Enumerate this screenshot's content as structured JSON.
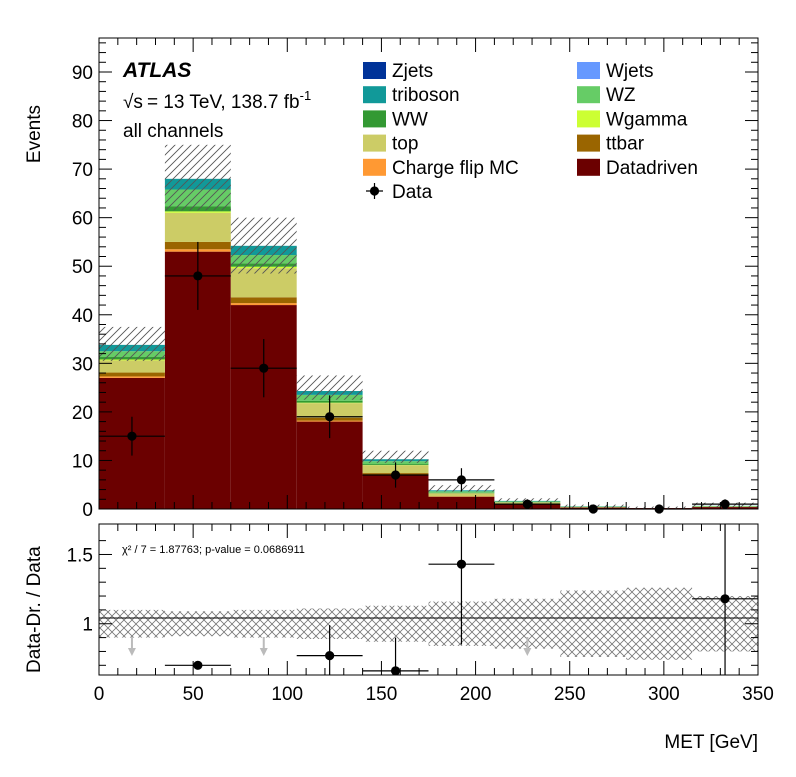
{
  "chart_data": [
    {
      "type": "stacked-bar",
      "ylabel": "Events",
      "ylim": [
        0,
        97
      ],
      "yticks": [
        0,
        10,
        20,
        30,
        40,
        50,
        60,
        70,
        80,
        90
      ],
      "xlim": [
        0,
        350
      ],
      "bin_edges": [
        0,
        35,
        70,
        105,
        140,
        175,
        210,
        245,
        280,
        315,
        350
      ],
      "atlas_label": "ATLAS",
      "energy_label": "= 13 TeV, 138.7 fb",
      "sqrt_symbol": "√s",
      "lumi_exponent": "-1",
      "channel_label": "all channels",
      "series": [
        {
          "name": "Datadriven",
          "color": "#6b0000",
          "values": [
            27,
            53,
            42,
            18,
            7,
            2.5,
            1,
            0.3,
            0.2,
            0.4
          ]
        },
        {
          "name": "Charge flip MC",
          "color": "#ff9933",
          "values": [
            0.3,
            0.5,
            0.4,
            0.2,
            0.1,
            0.05,
            0.02,
            0,
            0,
            0
          ]
        },
        {
          "name": "ttbar",
          "color": "#9a6500",
          "values": [
            0.8,
            1.5,
            1.2,
            0.6,
            0.3,
            0.1,
            0.05,
            0,
            0,
            0
          ]
        },
        {
          "name": "top",
          "color": "#cccc66",
          "values": [
            2.5,
            6,
            6,
            3,
            1.6,
            0.6,
            0.3,
            0.1,
            0,
            0.1
          ]
        },
        {
          "name": "Wgamma",
          "color": "#ccff33",
          "values": [
            0.2,
            0.3,
            0.3,
            0.1,
            0.05,
            0,
            0,
            0,
            0,
            0
          ]
        },
        {
          "name": "WW",
          "color": "#339933",
          "values": [
            0.5,
            1,
            0.7,
            0.4,
            0.2,
            0.1,
            0.05,
            0,
            0,
            0
          ]
        },
        {
          "name": "WZ",
          "color": "#66cc66",
          "values": [
            1.2,
            3.5,
            1.7,
            1.2,
            0.6,
            0.3,
            0.15,
            0.1,
            0,
            0.1
          ]
        },
        {
          "name": "Wjets",
          "color": "#6699ff",
          "values": [
            0,
            0,
            0,
            0,
            0,
            0,
            0,
            0,
            0,
            0
          ]
        },
        {
          "name": "triboson",
          "color": "#119999",
          "values": [
            1.3,
            2.2,
            1.9,
            0.8,
            0.4,
            0.2,
            0.1,
            0.05,
            0,
            0.05
          ]
        },
        {
          "name": "Zjets",
          "color": "#003399",
          "values": [
            0,
            0,
            0,
            0,
            0,
            0,
            0,
            0,
            0,
            0
          ]
        }
      ],
      "uncertainty_band": {
        "lower": [
          30.5,
          61.5,
          48.5,
          22.5,
          9.5,
          3.6,
          1.5,
          0.3,
          0.1,
          0.4
        ],
        "upper": [
          37.5,
          75,
          60,
          27.5,
          12,
          4.9,
          2.2,
          0.9,
          0.5,
          1.3
        ]
      },
      "data": {
        "label": "Data",
        "x": [
          17.5,
          52.5,
          87.5,
          122.5,
          157.5,
          192.5,
          227.5,
          262.5,
          297.5,
          332.5
        ],
        "y": [
          15,
          48,
          29,
          19,
          7,
          6,
          1,
          0,
          0,
          1
        ],
        "err": [
          4,
          7,
          6,
          4.4,
          2.6,
          2.4,
          1,
          0,
          0,
          1
        ]
      },
      "legend": {
        "left": [
          "Zjets",
          "triboson",
          "WW",
          "top",
          "Charge flip MC",
          "Data"
        ],
        "right": [
          "Wjets",
          "WZ",
          "Wgamma",
          "ttbar",
          "Datadriven"
        ],
        "position": "top-right"
      }
    },
    {
      "type": "ratio",
      "xlabel": "MET [GeV]",
      "ylabel": "Data-Dr. / Data",
      "ylim": [
        0.63,
        1.72
      ],
      "yticks": [
        1,
        1.5
      ],
      "xticks": [
        0,
        50,
        100,
        150,
        200,
        250,
        300,
        350
      ],
      "reference_line": 1,
      "chi2_label": "χ² / 7 = 1.87763; p-value = 0.0686911",
      "band_lower": [
        0.9,
        0.91,
        0.9,
        0.89,
        0.87,
        0.84,
        0.82,
        0.76,
        0.74,
        0.8
      ],
      "band_upper": [
        1.1,
        1.09,
        1.1,
        1.11,
        1.13,
        1.16,
        1.18,
        1.24,
        1.26,
        1.2
      ],
      "points": {
        "x": [
          52.5,
          122.5,
          157.5,
          192.5,
          332.5
        ],
        "y": [
          0.7,
          0.77,
          0.66,
          1.43,
          1.18
        ],
        "err": [
          0,
          0.22,
          0.24,
          0.58,
          1.0
        ]
      },
      "offscale_arrows_x": [
        17.5,
        87.5,
        227.5
      ]
    }
  ]
}
